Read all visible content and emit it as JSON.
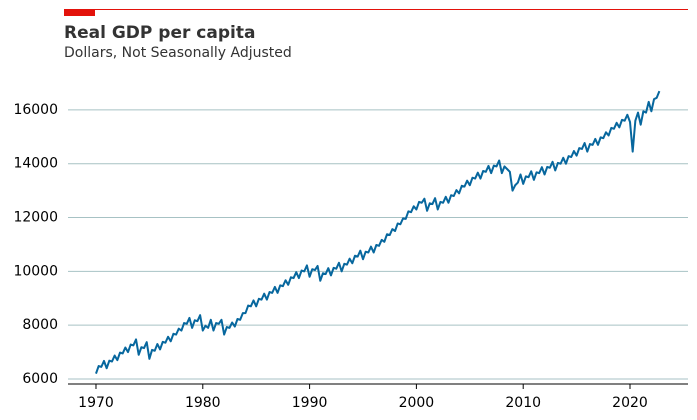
{
  "chart_data": {
    "type": "line",
    "title": "Real GDP per capita",
    "subtitle": "Dollars, Not Seasonally Adjusted",
    "x": [
      1970,
      1970.25,
      1970.5,
      1970.75,
      1971,
      1971.25,
      1971.5,
      1971.75,
      1972,
      1972.25,
      1972.5,
      1972.75,
      1973,
      1973.25,
      1973.5,
      1973.75,
      1974,
      1974.25,
      1974.5,
      1974.75,
      1975,
      1975.25,
      1975.5,
      1975.75,
      1976,
      1976.25,
      1976.5,
      1976.75,
      1977,
      1977.25,
      1977.5,
      1977.75,
      1978,
      1978.25,
      1978.5,
      1978.75,
      1979,
      1979.25,
      1979.5,
      1979.75,
      1980,
      1980.25,
      1980.5,
      1980.75,
      1981,
      1981.25,
      1981.5,
      1981.75,
      1982,
      1982.25,
      1982.5,
      1982.75,
      1983,
      1983.25,
      1983.5,
      1983.75,
      1984,
      1984.25,
      1984.5,
      1984.75,
      1985,
      1985.25,
      1985.5,
      1985.75,
      1986,
      1986.25,
      1986.5,
      1986.75,
      1987,
      1987.25,
      1987.5,
      1987.75,
      1988,
      1988.25,
      1988.5,
      1988.75,
      1989,
      1989.25,
      1989.5,
      1989.75,
      1990,
      1990.25,
      1990.5,
      1990.75,
      1991,
      1991.25,
      1991.5,
      1991.75,
      1992,
      1992.25,
      1992.5,
      1992.75,
      1993,
      1993.25,
      1993.5,
      1993.75,
      1994,
      1994.25,
      1994.5,
      1994.75,
      1995,
      1995.25,
      1995.5,
      1995.75,
      1996,
      1996.25,
      1996.5,
      1996.75,
      1997,
      1997.25,
      1997.5,
      1997.75,
      1998,
      1998.25,
      1998.5,
      1998.75,
      1999,
      1999.25,
      1999.5,
      1999.75,
      2000,
      2000.25,
      2000.5,
      2000.75,
      2001,
      2001.25,
      2001.5,
      2001.75,
      2002,
      2002.25,
      2002.5,
      2002.75,
      2003,
      2003.25,
      2003.5,
      2003.75,
      2004,
      2004.25,
      2004.5,
      2004.75,
      2005,
      2005.25,
      2005.5,
      2005.75,
      2006,
      2006.25,
      2006.5,
      2006.75,
      2007,
      2007.25,
      2007.5,
      2007.75,
      2008,
      2008.25,
      2008.5,
      2008.75,
      2009,
      2009.25,
      2009.5,
      2009.75,
      2010,
      2010.25,
      2010.5,
      2010.75,
      2011,
      2011.25,
      2011.5,
      2011.75,
      2012,
      2012.25,
      2012.5,
      2012.75,
      2013,
      2013.25,
      2013.5,
      2013.75,
      2014,
      2014.25,
      2014.5,
      2014.75,
      2015,
      2015.25,
      2015.5,
      2015.75,
      2016,
      2016.25,
      2016.5,
      2016.75,
      2017,
      2017.25,
      2017.5,
      2017.75,
      2018,
      2018.25,
      2018.5,
      2018.75,
      2019,
      2019.25,
      2019.5,
      2019.75,
      2020,
      2020.25,
      2020.5,
      2020.75,
      2021,
      2021.25,
      2021.5,
      2021.75,
      2022,
      2022.25,
      2022.5,
      2022.75
    ],
    "series": [
      {
        "name": "Real GDP per capita",
        "color": "#07679e",
        "values": [
          6200,
          6480,
          6450,
          6670,
          6400,
          6680,
          6650,
          6870,
          6700,
          6980,
          6950,
          7170,
          7000,
          7280,
          7250,
          7470,
          6900,
          7180,
          7150,
          7370,
          6750,
          7080,
          7050,
          7300,
          7100,
          7380,
          7350,
          7570,
          7400,
          7680,
          7650,
          7870,
          7800,
          8080,
          8050,
          8270,
          7900,
          8180,
          8150,
          8370,
          7800,
          7980,
          7900,
          8200,
          7800,
          8080,
          8050,
          8200,
          7650,
          7930,
          7900,
          8100,
          7950,
          8230,
          8200,
          8450,
          8450,
          8730,
          8700,
          8920,
          8700,
          8980,
          8950,
          9170,
          8950,
          9230,
          9200,
          9420,
          9200,
          9480,
          9450,
          9670,
          9500,
          9780,
          9750,
          9970,
          9750,
          10030,
          10000,
          10220,
          9800,
          10080,
          10050,
          10200,
          9650,
          9930,
          9900,
          10120,
          9850,
          10130,
          10100,
          10320,
          10000,
          10280,
          10250,
          10470,
          10300,
          10580,
          10550,
          10770,
          10450,
          10730,
          10700,
          10920,
          10700,
          10980,
          10950,
          11170,
          11100,
          11380,
          11350,
          11570,
          11500,
          11780,
          11750,
          11970,
          11950,
          12230,
          12200,
          12420,
          12300,
          12580,
          12550,
          12700,
          12250,
          12530,
          12500,
          12720,
          12300,
          12580,
          12550,
          12770,
          12550,
          12830,
          12800,
          13020,
          12900,
          13180,
          13150,
          13370,
          13200,
          13480,
          13450,
          13670,
          13450,
          13730,
          13700,
          13920,
          13650,
          13930,
          13900,
          14120,
          13650,
          13900,
          13800,
          13700,
          13000,
          13200,
          13300,
          13600,
          13250,
          13530,
          13500,
          13720,
          13400,
          13680,
          13650,
          13870,
          13600,
          13880,
          13850,
          14070,
          13750,
          14030,
          14000,
          14220,
          14000,
          14280,
          14250,
          14470,
          14300,
          14580,
          14550,
          14770,
          14450,
          14730,
          14700,
          14920,
          14700,
          14980,
          14950,
          15170,
          15050,
          15330,
          15300,
          15520,
          15350,
          15630,
          15600,
          15820,
          15550,
          14450,
          15600,
          15900,
          15450,
          15950,
          15900,
          16300,
          15950,
          16400,
          16450,
          16700
        ]
      }
    ],
    "xlim": [
      1967.38,
      2025.43
    ],
    "ylim": [
      5814,
      17000
    ],
    "xticks": [
      1970,
      1980,
      1990,
      2000,
      2010,
      2020
    ],
    "yticks": [
      6000,
      8000,
      10000,
      12000,
      14000,
      16000
    ],
    "grid": true
  }
}
